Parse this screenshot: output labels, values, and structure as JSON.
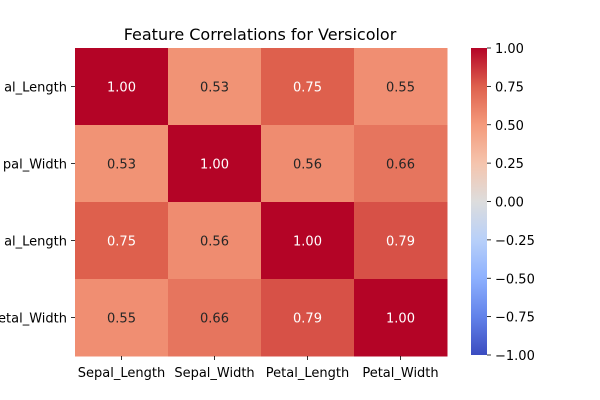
{
  "chart_data": {
    "type": "heatmap",
    "title": "Feature Correlations for Versicolor",
    "xlabel": "",
    "ylabel": "",
    "x_categories": [
      "Sepal_Length",
      "Sepal_Width",
      "Petal_Length",
      "Petal_Width"
    ],
    "y_categories": [
      "Sepal_Length",
      "Sepal_Width",
      "Petal_Length",
      "Petal_Width"
    ],
    "y_tick_labels_visible": [
      "al_Length",
      "pal_Width",
      "al_Length",
      "etal_Width"
    ],
    "values": [
      [
        1.0,
        0.53,
        0.75,
        0.55
      ],
      [
        0.53,
        1.0,
        0.56,
        0.66
      ],
      [
        0.75,
        0.56,
        1.0,
        0.79
      ],
      [
        0.55,
        0.66,
        0.79,
        1.0
      ]
    ],
    "value_labels": [
      [
        "1.00",
        "0.53",
        "0.75",
        "0.55"
      ],
      [
        "0.53",
        "1.00",
        "0.56",
        "0.66"
      ],
      [
        "0.75",
        "0.56",
        "1.00",
        "0.79"
      ],
      [
        "0.55",
        "0.66",
        "0.79",
        "1.00"
      ]
    ],
    "colormap": "coolwarm",
    "vmin": -1.0,
    "vmax": 1.0,
    "colorbar_ticks": [
      "1.00",
      "0.75",
      "0.50",
      "0.25",
      "0.00",
      "−0.25",
      "−0.50",
      "−0.75",
      "−1.00"
    ],
    "colorbar_tick_values": [
      1.0,
      0.75,
      0.5,
      0.25,
      0.0,
      -0.25,
      -0.5,
      -0.75,
      -1.0
    ],
    "grid": false,
    "colors": {
      "low": "#3b4cc0",
      "mid": "#dddddd",
      "high": "#b40426"
    }
  }
}
